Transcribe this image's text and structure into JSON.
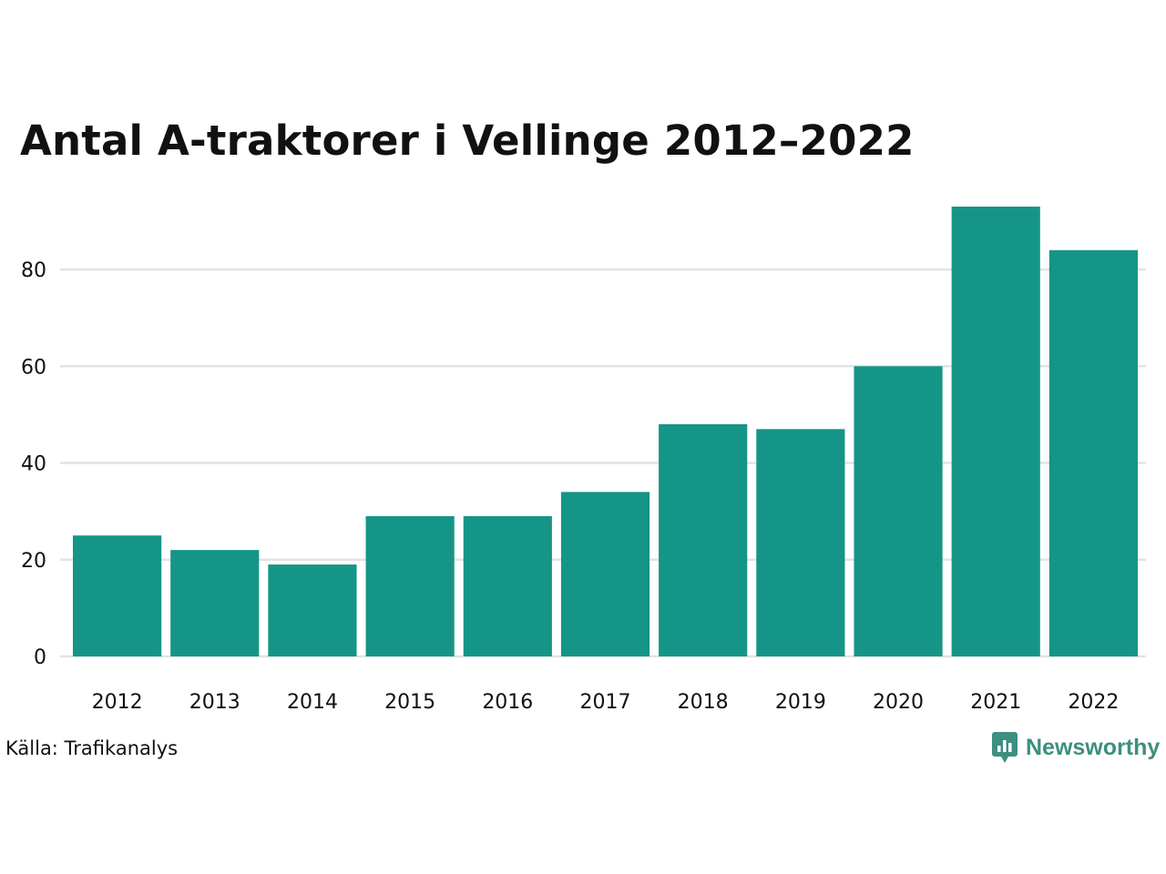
{
  "colors": {
    "bar": "#159587",
    "grid": "#e3e3e3",
    "text": "#111111",
    "brand": "#3d8f7f"
  },
  "source": "Källa: Trafikanalys",
  "brand": {
    "name": "Newsworthy",
    "icon": "newsworthy-logo-icon"
  },
  "chart_data": {
    "type": "bar",
    "title": "Antal A-traktorer i Vellinge 2012–2022",
    "categories": [
      "2012",
      "2013",
      "2014",
      "2015",
      "2016",
      "2017",
      "2018",
      "2019",
      "2020",
      "2021",
      "2022"
    ],
    "values": [
      25,
      22,
      19,
      29,
      29,
      34,
      48,
      47,
      60,
      93,
      84
    ],
    "yticks": [
      0,
      20,
      40,
      60,
      80
    ],
    "ylim": [
      0,
      95
    ],
    "xlabel": "",
    "ylabel": "",
    "grid": true,
    "legend": "none"
  }
}
